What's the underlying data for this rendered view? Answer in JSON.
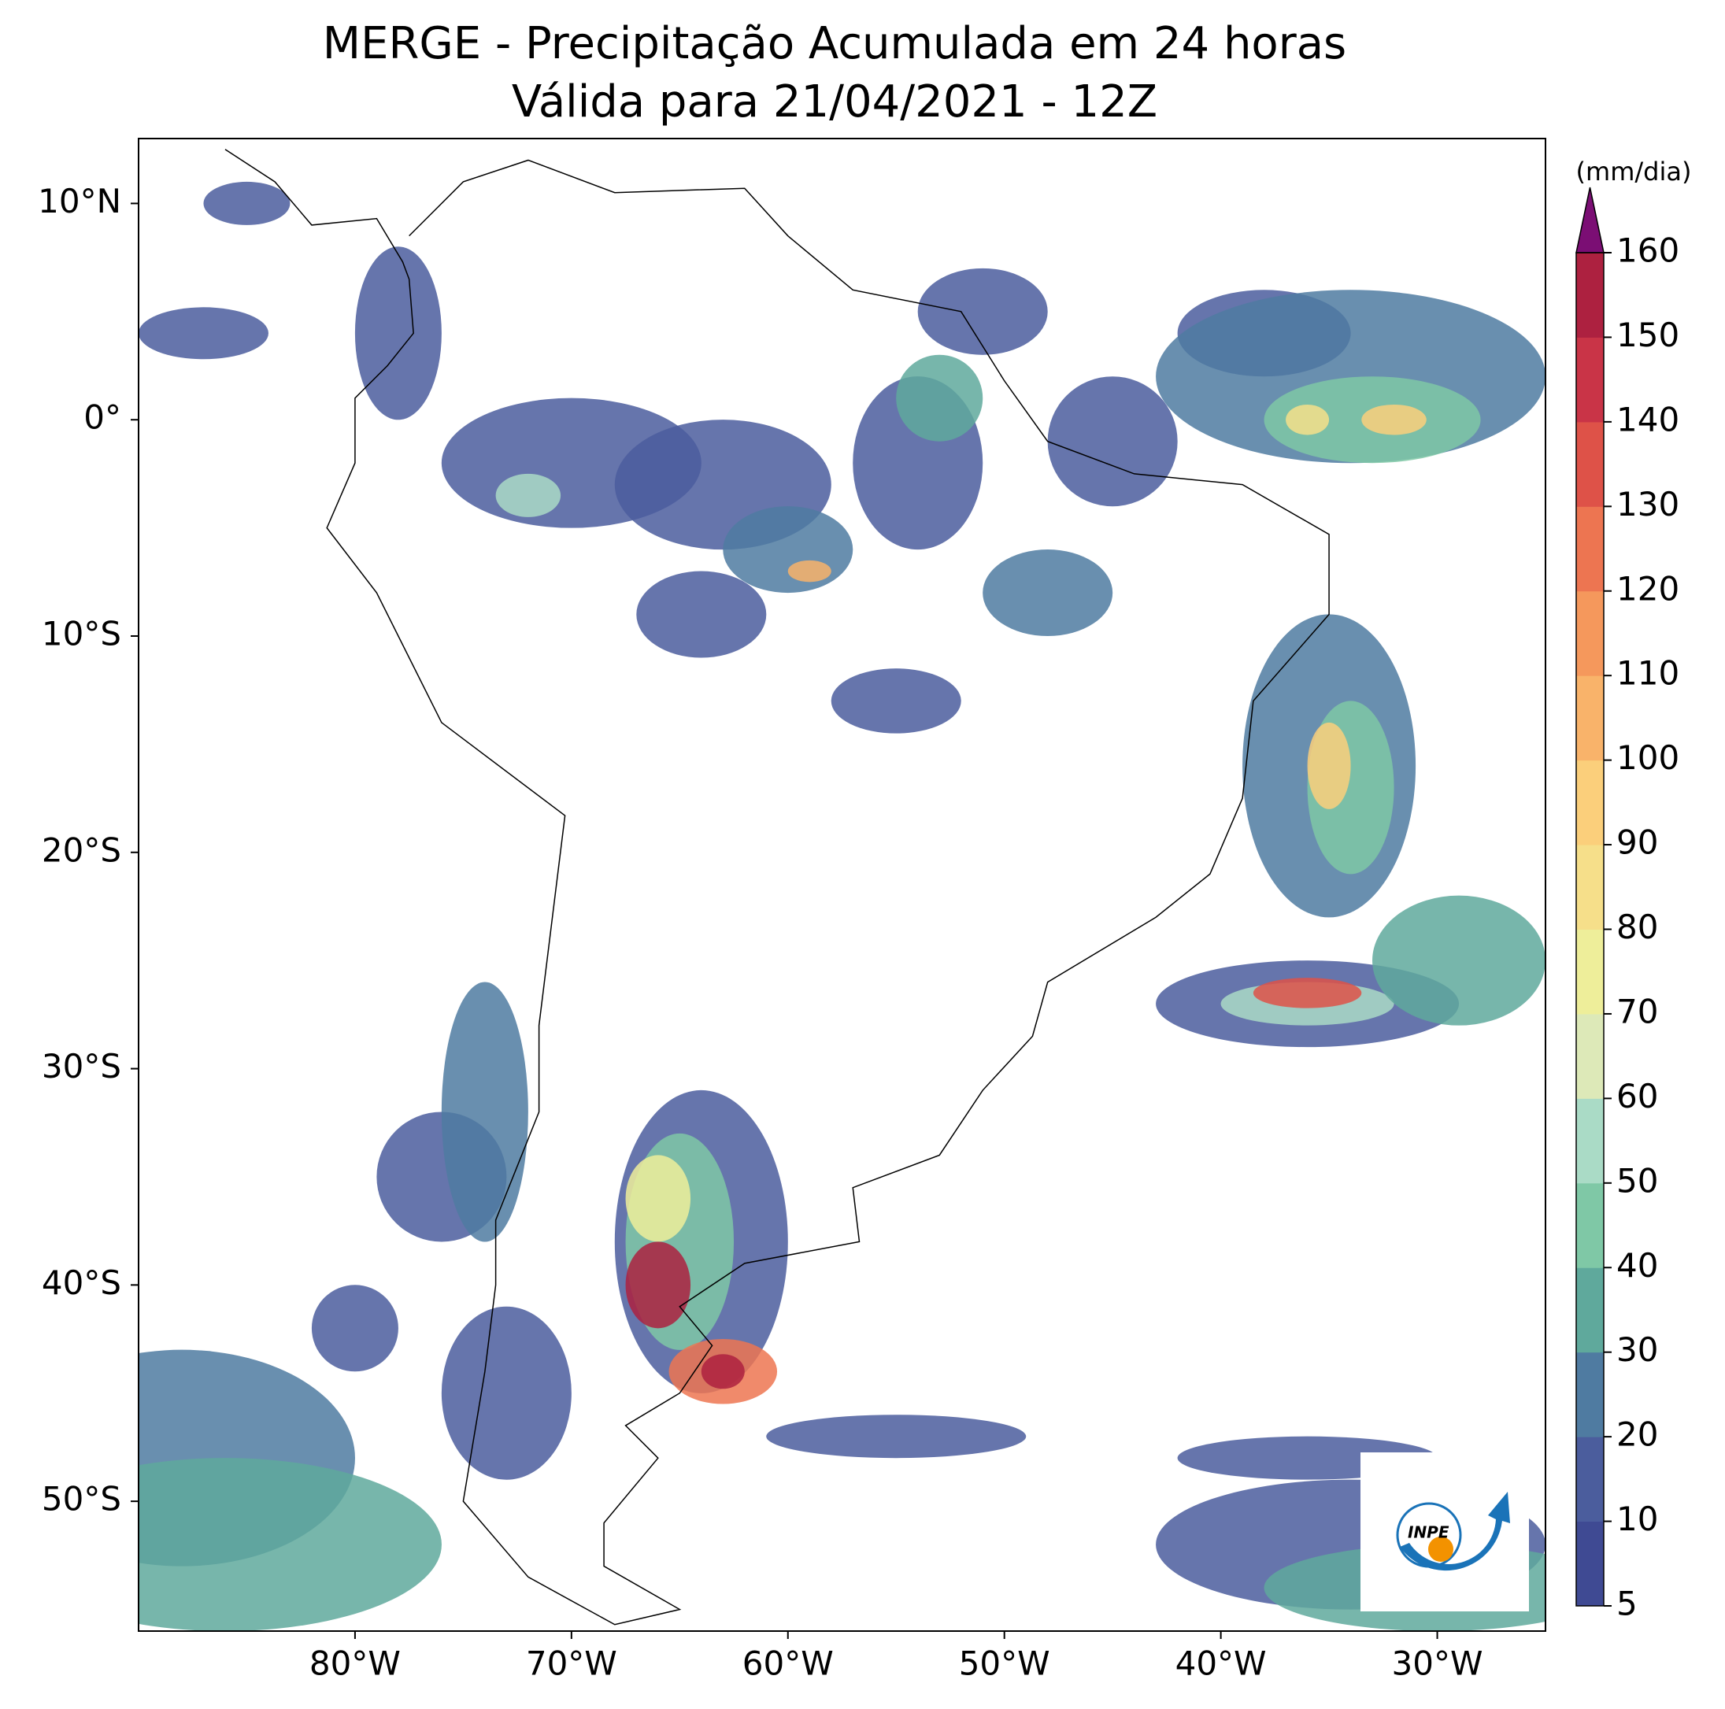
{
  "chart_data": {
    "type": "map",
    "title": "MERGE - Precipitação Acumulada em 24 horas",
    "subtitle": "Válida para 21/04/2021 - 12Z",
    "xlim": [
      -90,
      -25
    ],
    "ylim": [
      -56,
      13
    ],
    "xticks": [
      {
        "value": -80,
        "label": "80°W"
      },
      {
        "value": -70,
        "label": "70°W"
      },
      {
        "value": -60,
        "label": "60°W"
      },
      {
        "value": -50,
        "label": "50°W"
      },
      {
        "value": -40,
        "label": "40°W"
      },
      {
        "value": -30,
        "label": "30°W"
      }
    ],
    "yticks": [
      {
        "value": 10,
        "label": "10°N"
      },
      {
        "value": 0,
        "label": "0°"
      },
      {
        "value": -10,
        "label": "10°S"
      },
      {
        "value": -20,
        "label": "20°S"
      },
      {
        "value": -30,
        "label": "30°S"
      },
      {
        "value": -40,
        "label": "40°S"
      },
      {
        "value": -50,
        "label": "50°S"
      }
    ],
    "colorbar": {
      "label": "(mm/dia)",
      "ticks": [
        5,
        10,
        20,
        30,
        40,
        50,
        60,
        70,
        80,
        90,
        100,
        110,
        120,
        130,
        140,
        150,
        160
      ],
      "colors": [
        "#3f4a93",
        "#4b5d9d",
        "#4f7ba1",
        "#5fa99c",
        "#7fc8a6",
        "#aadbc6",
        "#dde9b8",
        "#eeee9a",
        "#f6df8a",
        "#fbcf7b",
        "#f9b36a",
        "#f5985c",
        "#ed7551",
        "#de5248",
        "#c93447",
        "#ad2140"
      ],
      "extend_color": "#7b0e74"
    },
    "logo_text": "INPE"
  }
}
